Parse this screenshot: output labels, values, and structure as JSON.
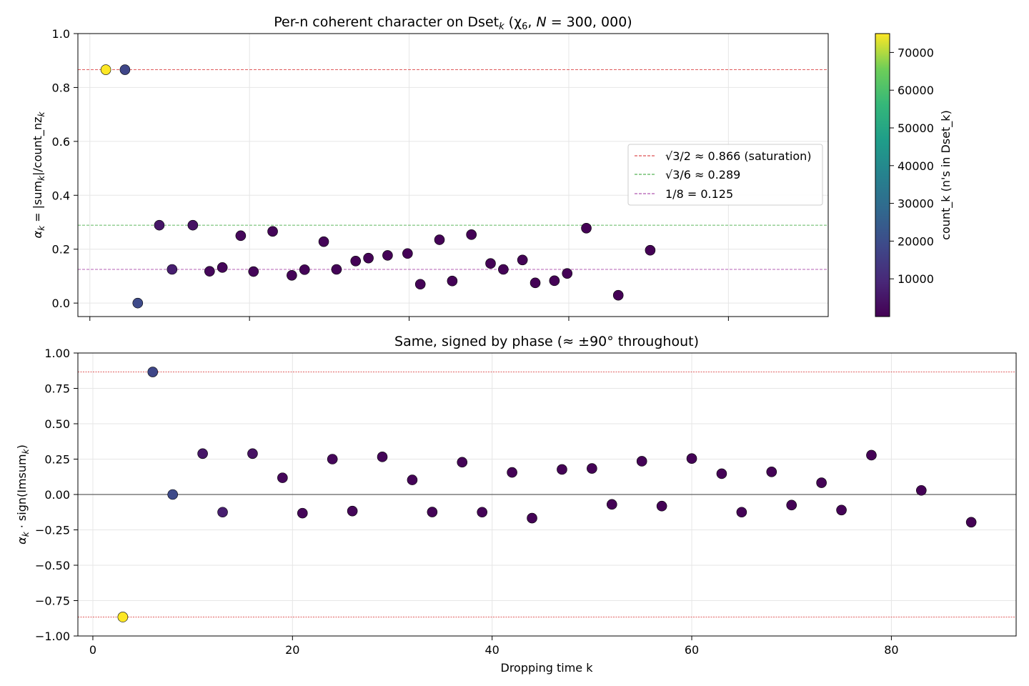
{
  "chart_data": [
    {
      "type": "scatter",
      "title": "Per-n coherent character on Dset_k (χ_6, N = 300,000)",
      "title_parts": {
        "prefix": "Per-n coherent character on Dset",
        "sub": "k",
        "mid": " (χ",
        "chi_sub": "6",
        "sep": ", ",
        "n_label": "N",
        "eq": " = 300, 000)"
      },
      "ylabel": "α_k = |sum_k|/count_nz_k",
      "ylabel_parts": {
        "alpha": "α",
        "k": "k",
        "eq": " = |sum",
        "mid": "|/count_nz"
      },
      "xlim": [
        -1.5,
        92.5
      ],
      "ylim": [
        -0.05,
        1.0
      ],
      "yticks": [
        0.0,
        0.2,
        0.4,
        0.6,
        0.8,
        1.0
      ],
      "ytick_labels": [
        "0.0",
        "0.2",
        "0.4",
        "0.6",
        "0.8",
        "1.0"
      ],
      "xticks": [
        0,
        20,
        40,
        60,
        80
      ],
      "grid": true,
      "reference_lines": [
        {
          "y": 0.866,
          "color": "#d62728",
          "label": "√3/2 ≈ 0.866 (saturation)"
        },
        {
          "y": 0.289,
          "color": "#2ca02c",
          "label": "√3/6 ≈ 0.289"
        },
        {
          "y": 0.125,
          "color": "#9d2c9d",
          "label": "1/8 = 0.125"
        }
      ],
      "legend_placement": "center-right",
      "points": [
        {
          "x": 2,
          "y": 0.866,
          "count": 75000
        },
        {
          "x": 4.4,
          "y": 0.866,
          "count": 18000
        },
        {
          "x": 6,
          "y": 0.0,
          "count": 19000
        },
        {
          "x": 8.7,
          "y": 0.289,
          "count": 5000
        },
        {
          "x": 10.3,
          "y": 0.125,
          "count": 7000
        },
        {
          "x": 12.9,
          "y": 0.289,
          "count": 4000
        },
        {
          "x": 15,
          "y": 0.118,
          "count": 1500
        },
        {
          "x": 16.6,
          "y": 0.132,
          "count": 1200
        },
        {
          "x": 18.9,
          "y": 0.25,
          "count": 1500
        },
        {
          "x": 20.5,
          "y": 0.117,
          "count": 1200
        },
        {
          "x": 22.9,
          "y": 0.266,
          "count": 1000
        },
        {
          "x": 25.3,
          "y": 0.103,
          "count": 800
        },
        {
          "x": 26.9,
          "y": 0.124,
          "count": 800
        },
        {
          "x": 29.3,
          "y": 0.228,
          "count": 700
        },
        {
          "x": 30.9,
          "y": 0.125,
          "count": 700
        },
        {
          "x": 33.3,
          "y": 0.156,
          "count": 600
        },
        {
          "x": 34.9,
          "y": 0.167,
          "count": 600
        },
        {
          "x": 37.3,
          "y": 0.177,
          "count": 600
        },
        {
          "x": 39.8,
          "y": 0.184,
          "count": 500
        },
        {
          "x": 41.4,
          "y": 0.07,
          "count": 500
        },
        {
          "x": 43.8,
          "y": 0.235,
          "count": 500
        },
        {
          "x": 45.4,
          "y": 0.082,
          "count": 500
        },
        {
          "x": 47.8,
          "y": 0.254,
          "count": 400
        },
        {
          "x": 50.2,
          "y": 0.147,
          "count": 400
        },
        {
          "x": 51.8,
          "y": 0.125,
          "count": 400
        },
        {
          "x": 54.2,
          "y": 0.16,
          "count": 400
        },
        {
          "x": 55.8,
          "y": 0.075,
          "count": 400
        },
        {
          "x": 58.2,
          "y": 0.083,
          "count": 400
        },
        {
          "x": 59.8,
          "y": 0.11,
          "count": 400
        },
        {
          "x": 62.2,
          "y": 0.278,
          "count": 300
        },
        {
          "x": 66.2,
          "y": 0.029,
          "count": 300
        },
        {
          "x": 70.2,
          "y": 0.196,
          "count": 300
        }
      ]
    },
    {
      "type": "scatter",
      "title": "Same, signed by phase (≈ ±90° throughout)",
      "xlabel": "Dropping time k",
      "ylabel": "α_k · sign(Imsum_k)",
      "ylabel_parts": {
        "alpha": "α",
        "k": "k",
        "mid": " · sign(Imsum"
      },
      "xlim": [
        -1.5,
        92.5
      ],
      "ylim": [
        -1.0,
        1.0
      ],
      "xticks": [
        0,
        20,
        40,
        60,
        80
      ],
      "xtick_labels": [
        "0",
        "20",
        "40",
        "60",
        "80"
      ],
      "yticks": [
        -1.0,
        -0.75,
        -0.5,
        -0.25,
        0.0,
        0.25,
        0.5,
        0.75,
        1.0
      ],
      "ytick_labels": [
        "−1.00",
        "−0.75",
        "−0.50",
        "−0.25",
        "0.00",
        "0.25",
        "0.50",
        "0.75",
        "1.00"
      ],
      "grid": true,
      "reference_lines": [
        {
          "y": 0.866,
          "color": "#d62728"
        },
        {
          "y": -0.866,
          "color": "#d62728"
        },
        {
          "y": 0.0,
          "color": "#000000"
        }
      ],
      "points": [
        {
          "x": 3,
          "y": -0.866,
          "count": 75000
        },
        {
          "x": 6,
          "y": 0.866,
          "count": 18000
        },
        {
          "x": 8,
          "y": 0.0,
          "count": 19000
        },
        {
          "x": 11,
          "y": 0.289,
          "count": 5000
        },
        {
          "x": 13,
          "y": -0.125,
          "count": 7000
        },
        {
          "x": 16,
          "y": 0.289,
          "count": 4000
        },
        {
          "x": 19,
          "y": 0.118,
          "count": 1500
        },
        {
          "x": 21,
          "y": -0.132,
          "count": 1200
        },
        {
          "x": 24,
          "y": 0.25,
          "count": 1500
        },
        {
          "x": 26,
          "y": -0.117,
          "count": 1200
        },
        {
          "x": 29,
          "y": 0.266,
          "count": 1000
        },
        {
          "x": 32,
          "y": 0.103,
          "count": 800
        },
        {
          "x": 34,
          "y": -0.124,
          "count": 800
        },
        {
          "x": 37,
          "y": 0.228,
          "count": 700
        },
        {
          "x": 39,
          "y": -0.125,
          "count": 700
        },
        {
          "x": 42,
          "y": 0.156,
          "count": 600
        },
        {
          "x": 44,
          "y": -0.167,
          "count": 600
        },
        {
          "x": 47,
          "y": 0.177,
          "count": 600
        },
        {
          "x": 50,
          "y": 0.184,
          "count": 500
        },
        {
          "x": 52,
          "y": -0.07,
          "count": 500
        },
        {
          "x": 55,
          "y": 0.235,
          "count": 500
        },
        {
          "x": 57,
          "y": -0.082,
          "count": 500
        },
        {
          "x": 60,
          "y": 0.254,
          "count": 400
        },
        {
          "x": 63,
          "y": 0.147,
          "count": 400
        },
        {
          "x": 65,
          "y": -0.125,
          "count": 400
        },
        {
          "x": 68,
          "y": 0.16,
          "count": 400
        },
        {
          "x": 70,
          "y": -0.075,
          "count": 400
        },
        {
          "x": 73,
          "y": 0.083,
          "count": 400
        },
        {
          "x": 75,
          "y": -0.11,
          "count": 400
        },
        {
          "x": 78,
          "y": 0.278,
          "count": 300
        },
        {
          "x": 83,
          "y": 0.029,
          "count": 300
        },
        {
          "x": 88,
          "y": -0.196,
          "count": 300
        }
      ]
    }
  ],
  "colorbar": {
    "label": "count_k (n's in Dset_k)",
    "colormap": "viridis",
    "range": [
      0,
      75000
    ],
    "ticks": [
      10000,
      20000,
      30000,
      40000,
      50000,
      60000,
      70000
    ],
    "tick_labels": [
      "10000",
      "20000",
      "30000",
      "40000",
      "50000",
      "60000",
      "70000"
    ]
  }
}
